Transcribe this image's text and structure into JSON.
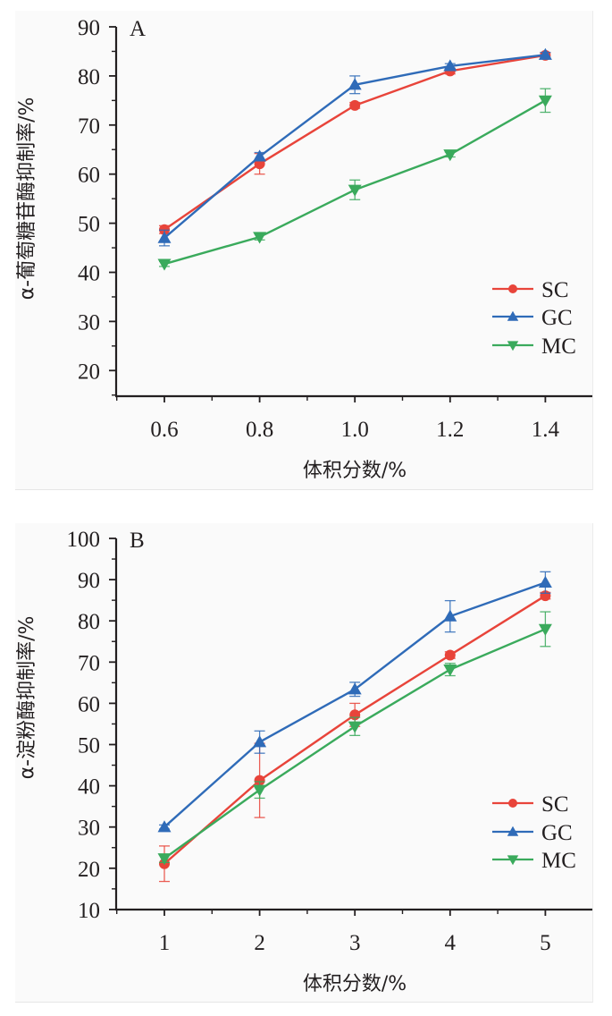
{
  "chart_data": [
    {
      "type": "line",
      "panel_label": "A",
      "title": "",
      "xlabel": "体积分数/%",
      "ylabel": "α-葡萄糖苷酶抑制率/%",
      "x": [
        0.6,
        0.8,
        1.0,
        1.2,
        1.4
      ],
      "x_tick_labels": [
        "0.6",
        "0.8",
        "1.0",
        "1.2",
        "1.4"
      ],
      "xlim": [
        0.5,
        1.5
      ],
      "ylim": [
        15,
        90
      ],
      "y_ticks": [
        20,
        30,
        40,
        50,
        60,
        70,
        80,
        90
      ],
      "y_tick_labels": [
        "20",
        "30",
        "40",
        "50",
        "60",
        "70",
        "80",
        "90"
      ],
      "legend_position": "lower-right",
      "series": [
        {
          "name": "SC",
          "color": "#e8443a",
          "marker": "circle",
          "values": [
            48.7,
            62.1,
            74.0,
            81.0,
            84.2
          ],
          "errors": [
            0.8,
            2.1,
            0.6,
            0.6,
            0.5
          ]
        },
        {
          "name": "GC",
          "color": "#2f6bb8",
          "marker": "triangle-up",
          "values": [
            47.0,
            63.6,
            78.2,
            82.0,
            84.3
          ],
          "errors": [
            1.6,
            0.8,
            1.8,
            0.5,
            0.5
          ]
        },
        {
          "name": "MC",
          "color": "#3aaa5c",
          "marker": "triangle-down",
          "values": [
            41.7,
            47.2,
            56.8,
            64.0,
            75.0
          ],
          "errors": [
            0.5,
            0.6,
            2.0,
            0.5,
            2.4
          ]
        }
      ]
    },
    {
      "type": "line",
      "panel_label": "B",
      "title": "",
      "xlabel": "体积分数/%",
      "ylabel": "α-淀粉酶抑制率/%",
      "x": [
        1,
        2,
        3,
        4,
        5
      ],
      "x_tick_labels": [
        "1",
        "2",
        "3",
        "4",
        "5"
      ],
      "xlim": [
        0.5,
        5.5
      ],
      "ylim": [
        10,
        100
      ],
      "y_ticks": [
        10,
        20,
        30,
        40,
        50,
        60,
        70,
        80,
        90,
        100
      ],
      "y_tick_labels": [
        "10",
        "20",
        "30",
        "40",
        "50",
        "60",
        "70",
        "80",
        "90",
        "100"
      ],
      "legend_position": "lower-right",
      "series": [
        {
          "name": "SC",
          "color": "#e8443a",
          "marker": "circle",
          "values": [
            21.1,
            41.3,
            57.2,
            71.7,
            86.1
          ],
          "errors": [
            4.3,
            9.0,
            2.8,
            0.8,
            0.8
          ]
        },
        {
          "name": "GC",
          "color": "#2f6bb8",
          "marker": "triangle-up",
          "values": [
            30.0,
            50.6,
            63.4,
            81.1,
            89.3
          ],
          "errors": [
            0.5,
            2.7,
            1.7,
            3.8,
            2.6
          ]
        },
        {
          "name": "MC",
          "color": "#3aaa5c",
          "marker": "triangle-down",
          "values": [
            22.4,
            39.0,
            54.4,
            68.2,
            78.0
          ],
          "errors": [
            1.0,
            2.0,
            2.2,
            1.5,
            4.2
          ]
        }
      ]
    }
  ]
}
